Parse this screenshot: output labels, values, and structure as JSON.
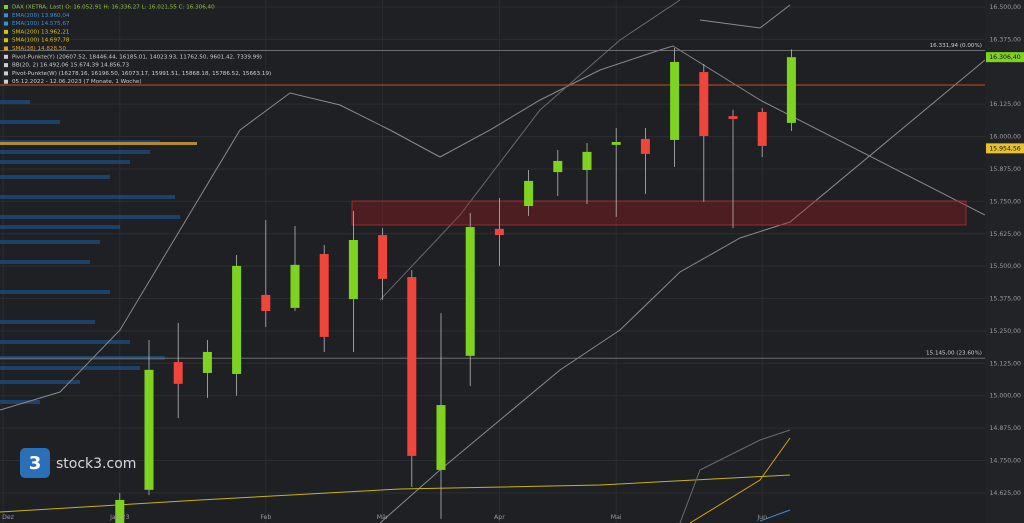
{
  "chart_data": {
    "type": "candlestick",
    "legend": [
      "DAX (XETRA, Last)  O: 16.052,91  H: 16.336,27  L: 16.021,55  C: 16.306,40",
      "EMA(200)  13.960,04",
      "EMA(100)  14.575,67",
      "SMA(200)  13.962,21",
      "SMA(100)  14.697,78",
      "SMA(38)  14.828,50",
      "Pivot-Punkte(Y)  (20607.52, 18446.44, 16185.01, 14023.93, 11762.50, 9601.42, 7339.99)",
      "BB(20, 2)  16.492,06  15.674,39  14.856,73",
      "Pivot-Punkte(W)  (16278.16, 16196.50, 16073.17, 15991.51, 15868.18, 15786.52, 15663.19)",
      "05.12.2022 - 12.06.2023  (7 Monate, 1 Woche)"
    ],
    "legend_colors": [
      "#7ed321",
      "#3a8fd8",
      "#3a8fd8",
      "#d4c21a",
      "#d4c21a",
      "#e0a020",
      "#cfcfcf",
      "#cfcfcf",
      "#cfcfcf",
      "#cfcfcf"
    ],
    "categories": [
      "Dez",
      null,
      null,
      null,
      "Jan 23",
      null,
      null,
      null,
      null,
      "Feb",
      null,
      null,
      null,
      "Mär",
      null,
      null,
      null,
      "Apr",
      null,
      null,
      null,
      "Mai",
      null,
      null,
      null,
      null,
      "Jun",
      null
    ],
    "open": [
      null,
      null,
      null,
      null,
      14480,
      14637,
      15130,
      15088,
      15084,
      15389,
      15339,
      15547,
      15373,
      15620,
      15458,
      14714,
      15154,
      15644,
      15732,
      15863,
      15871,
      15968,
      15991,
      15987,
      16249,
      16079,
      16095,
      16052.91
    ],
    "high": [
      null,
      null,
      null,
      null,
      14625,
      15215,
      15281,
      15215,
      15543,
      15678,
      15655,
      15582,
      15713,
      15647,
      15485,
      15319,
      15705,
      15763,
      15871,
      15948,
      15975,
      16033,
      16033,
      16342,
      16280,
      16103,
      16110,
      16336.27
    ],
    "low": [
      null,
      null,
      null,
      null,
      14460,
      14617,
      14914,
      14992,
      15000,
      15265,
      15327,
      15169,
      15169,
      15370,
      14648,
      14525,
      15038,
      15501,
      15694,
      15771,
      15740,
      15690,
      15779,
      15883,
      15748,
      15647,
      15921,
      16021.55
    ],
    "close": [
      null,
      null,
      null,
      null,
      14598,
      15100,
      15046,
      15169,
      15501,
      15327,
      15505,
      15227,
      15601,
      15451,
      14768,
      14964,
      15651,
      15620,
      15829,
      15906,
      15941,
      15979,
      15933,
      16288,
      16002,
      16068,
      15964,
      16306.4
    ],
    "up_color": "#7ed321",
    "down_color": "#f0453a",
    "ylim": [
      14509,
      16527
    ],
    "yticks": [
      {
        "value": 16500,
        "label": "16.500,00"
      },
      {
        "value": 16375,
        "label": "16.375,00"
      },
      {
        "value": 16125,
        "label": "16.125,00"
      },
      {
        "value": 16000,
        "label": "16.000,00"
      },
      {
        "value": 15875,
        "label": "15.875,00"
      },
      {
        "value": 15750,
        "label": "15.750,00"
      },
      {
        "value": 15625,
        "label": "15.625,00"
      },
      {
        "value": 15500,
        "label": "15.500,00"
      },
      {
        "value": 15375,
        "label": "15.375,00"
      },
      {
        "value": 15250,
        "label": "15.250,00"
      },
      {
        "value": 15125,
        "label": "15.125,00"
      },
      {
        "value": 15000,
        "label": "15.000,00"
      },
      {
        "value": 14875,
        "label": "14.875,00"
      },
      {
        "value": 14750,
        "label": "14.750,00"
      },
      {
        "value": 14625,
        "label": "14.625,00"
      }
    ],
    "grid": true,
    "price_tags": [
      {
        "value": 16306.4,
        "label": "16.306,40",
        "color": "#7ed321"
      },
      {
        "value": 15954.56,
        "label": "15.954,56",
        "color": "#e8c22a"
      }
    ],
    "fib_levels": [
      {
        "value": 16331.94,
        "label": "16.331,94 (0.00%)"
      },
      {
        "value": 15145.0,
        "label": "15.145,00 (23.60%)"
      }
    ],
    "logo": "stock3.com"
  }
}
